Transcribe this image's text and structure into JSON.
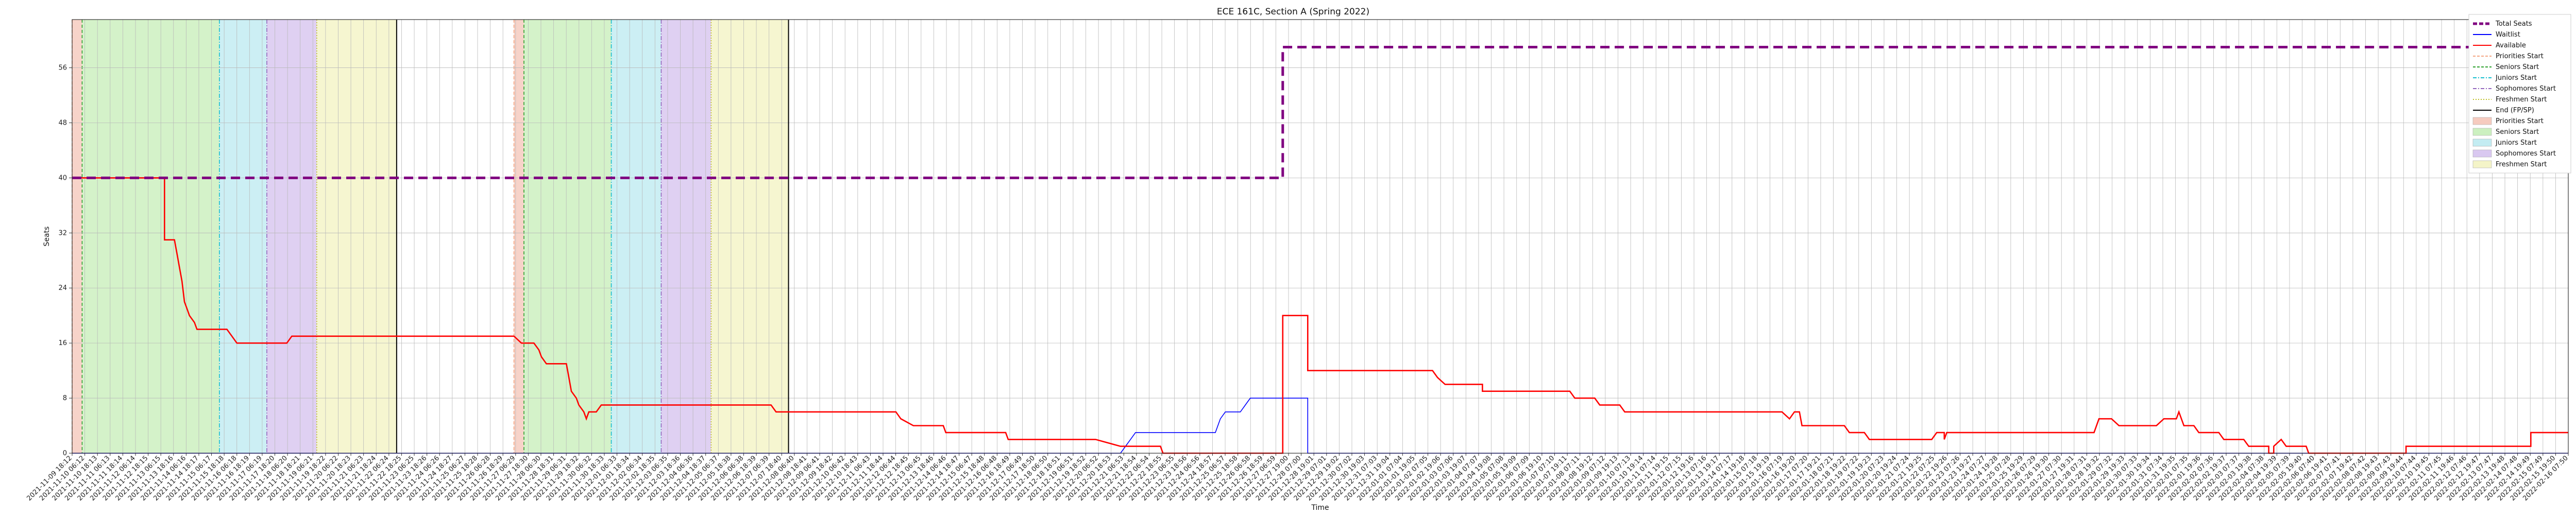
{
  "chart_data": {
    "type": "line",
    "title": "ECE 161C, Section A (Spring 2022)",
    "xlabel": "Time",
    "ylabel": "Seats",
    "yticks": [
      0,
      8,
      16,
      24,
      32,
      40,
      48,
      56
    ],
    "ylim": [
      0,
      63
    ],
    "xlim": [
      0,
      1000
    ],
    "x_unit_note": "",
    "grid": true,
    "legend_position": "outside-right",
    "legend": [
      {
        "label": "Total Seats",
        "kind": "line",
        "color": "#800080",
        "style": "dashed-thick"
      },
      {
        "label": "Waitlist",
        "kind": "line",
        "color": "#0000ff",
        "style": "solid"
      },
      {
        "label": "Available",
        "kind": "line",
        "color": "#ff0000",
        "style": "solid"
      },
      {
        "label": "Priorities Start",
        "kind": "line",
        "color": "#f4a582",
        "style": "dashed"
      },
      {
        "label": "Seniors Start",
        "kind": "line",
        "color": "#2ca02c",
        "style": "dashed"
      },
      {
        "label": "Juniors Start",
        "kind": "line",
        "color": "#17becf",
        "style": "dashdot"
      },
      {
        "label": "Sophomores Start",
        "kind": "line",
        "color": "#9467bd",
        "style": "dashdot"
      },
      {
        "label": "Freshmen Start",
        "kind": "line",
        "color": "#bcbd22",
        "style": "dotted"
      },
      {
        "label": "End (FP/SP)",
        "kind": "line",
        "color": "#000000",
        "style": "solid"
      },
      {
        "label": "Priorities Start",
        "kind": "patch",
        "color": "#f6cbbf"
      },
      {
        "label": "Seniors Start",
        "kind": "patch",
        "color": "#ccf0c0"
      },
      {
        "label": "Juniors Start",
        "kind": "patch",
        "color": "#c3ecf2"
      },
      {
        "label": "Sophomores Start",
        "kind": "patch",
        "color": "#d9c8f0"
      },
      {
        "label": "Freshmen Start",
        "kind": "patch",
        "color": "#f4f4c8"
      }
    ],
    "shaded_regions": [
      {
        "phase": "priority",
        "x0": 0,
        "x1": 4,
        "color": "#f6cbbf"
      },
      {
        "phase": "seniors",
        "x0": 4,
        "x1": 59,
        "color": "#ccf0c0"
      },
      {
        "phase": "juniors",
        "x0": 59,
        "x1": 78,
        "color": "#c3ecf2"
      },
      {
        "phase": "sophomores",
        "x0": 78,
        "x1": 98,
        "color": "#d9c8f0"
      },
      {
        "phase": "freshmen",
        "x0": 98,
        "x1": 130,
        "color": "#f4f4c8"
      },
      {
        "phase": "priority",
        "x0": 177,
        "x1": 181,
        "color": "#f6cbbf"
      },
      {
        "phase": "seniors",
        "x0": 181,
        "x1": 216,
        "color": "#ccf0c0"
      },
      {
        "phase": "juniors",
        "x0": 216,
        "x1": 236,
        "color": "#c3ecf2"
      },
      {
        "phase": "sophomores",
        "x0": 236,
        "x1": 256,
        "color": "#d9c8f0"
      },
      {
        "phase": "freshmen",
        "x0": 256,
        "x1": 287,
        "color": "#f4f4c8"
      }
    ],
    "end_lines": [
      130,
      287
    ],
    "series": [
      {
        "name": "Total Seats",
        "color": "#800080",
        "points": [
          [
            0,
            40
          ],
          [
            485,
            40
          ],
          [
            485,
            59
          ],
          [
            1000,
            59
          ]
        ]
      },
      {
        "name": "Waitlist",
        "color": "#0000ff",
        "points": [
          [
            0,
            0
          ],
          [
            420,
            0
          ],
          [
            422,
            1
          ],
          [
            424,
            2
          ],
          [
            426,
            3
          ],
          [
            458,
            3
          ],
          [
            460,
            5
          ],
          [
            462,
            6
          ],
          [
            468,
            6
          ],
          [
            470,
            7
          ],
          [
            472,
            8
          ],
          [
            495,
            8
          ],
          [
            495,
            0
          ],
          [
            1000,
            0
          ]
        ]
      },
      {
        "name": "Available",
        "color": "#ff0000",
        "points": [
          [
            0,
            40
          ],
          [
            37,
            40
          ],
          [
            37,
            31
          ],
          [
            41,
            31
          ],
          [
            42,
            29
          ],
          [
            43,
            27
          ],
          [
            44,
            25
          ],
          [
            45,
            22
          ],
          [
            46,
            21
          ],
          [
            47,
            20
          ],
          [
            49,
            19
          ],
          [
            50,
            18
          ],
          [
            62,
            18
          ],
          [
            64,
            17
          ],
          [
            66,
            16
          ],
          [
            86,
            16
          ],
          [
            88,
            17
          ],
          [
            177,
            17
          ],
          [
            180,
            16
          ],
          [
            185,
            16
          ],
          [
            187,
            15
          ],
          [
            188,
            14
          ],
          [
            190,
            13
          ],
          [
            198,
            13
          ],
          [
            199,
            11
          ],
          [
            200,
            9
          ],
          [
            202,
            8
          ],
          [
            203,
            7
          ],
          [
            205,
            6
          ],
          [
            206,
            5
          ],
          [
            207,
            6
          ],
          [
            210,
            6
          ],
          [
            212,
            7
          ],
          [
            280,
            7
          ],
          [
            282,
            6
          ],
          [
            330,
            6
          ],
          [
            332,
            5
          ],
          [
            337,
            4
          ],
          [
            349,
            4
          ],
          [
            350,
            3
          ],
          [
            363,
            3
          ],
          [
            374,
            3
          ],
          [
            375,
            2
          ],
          [
            410,
            2
          ],
          [
            420,
            1
          ],
          [
            436,
            1
          ],
          [
            437,
            0
          ],
          [
            485,
            0
          ],
          [
            485,
            20
          ],
          [
            495,
            20
          ],
          [
            495,
            12
          ],
          [
            545,
            12
          ],
          [
            547,
            11
          ],
          [
            550,
            10
          ],
          [
            565,
            10
          ],
          [
            565,
            9
          ],
          [
            600,
            9
          ],
          [
            602,
            8
          ],
          [
            610,
            8
          ],
          [
            612,
            7
          ],
          [
            620,
            7
          ],
          [
            622,
            6
          ],
          [
            685,
            6
          ],
          [
            688,
            5
          ],
          [
            690,
            6
          ],
          [
            692,
            6
          ],
          [
            693,
            4
          ],
          [
            710,
            4
          ],
          [
            712,
            3
          ],
          [
            718,
            3
          ],
          [
            720,
            2
          ],
          [
            745,
            2
          ],
          [
            747,
            3
          ],
          [
            750,
            3
          ],
          [
            750,
            2
          ],
          [
            751,
            3
          ],
          [
            810,
            3
          ],
          [
            812,
            5
          ],
          [
            817,
            5
          ],
          [
            820,
            4
          ],
          [
            835,
            4
          ],
          [
            838,
            5
          ],
          [
            843,
            5
          ],
          [
            844,
            6
          ],
          [
            846,
            4
          ],
          [
            850,
            4
          ],
          [
            852,
            3
          ],
          [
            860,
            3
          ],
          [
            862,
            2
          ],
          [
            870,
            2
          ],
          [
            872,
            1
          ],
          [
            880,
            1
          ],
          [
            880,
            0
          ],
          [
            882,
            0
          ],
          [
            882,
            1
          ],
          [
            885,
            2
          ],
          [
            887,
            1
          ],
          [
            895,
            1
          ],
          [
            896,
            0
          ],
          [
            935,
            0
          ],
          [
            935,
            1
          ],
          [
            950,
            1
          ],
          [
            950,
            1
          ],
          [
            960,
            1
          ],
          [
            970,
            1
          ],
          [
            985,
            1
          ],
          [
            985,
            3
          ],
          [
            1000,
            3
          ]
        ]
      }
    ]
  },
  "x_tick_labels": [
    "2021-11-09 18:12",
    "2021-11-10 06:12",
    "2021-11-10 18:13",
    "2021-11-11 06:13",
    "2021-11-11 18:14",
    "2021-11-12 06:14",
    "2021-11-12 18:15",
    "2021-11-13 06:15",
    "2021-11-13 18:16",
    "2021-11-14 06:16",
    "2021-11-14 18:17",
    "2021-11-15 06:17",
    "2021-11-15 18:18",
    "2021-11-16 06:18",
    "2021-11-16 18:19",
    "2021-11-17 06:19",
    "2021-11-17 18:20",
    "2021-11-18 06:20",
    "2021-11-18 18:21",
    "2021-11-19 06:21",
    "2021-11-19 18:22",
    "2021-11-20 06:22",
    "2021-11-20 18:23",
    "2021-11-21 06:23",
    "2021-11-21 18:24",
    "2021-11-22 06:24",
    "2021-11-22 18:25",
    "2021-11-23 06:25",
    "2021-11-23 18:26",
    "2021-11-24 06:26",
    "2021-11-24 18:27",
    "2021-11-25 06:27",
    "2021-11-25 18:28",
    "2021-11-26 06:28",
    "2021-11-26 18:29",
    "2021-11-27 06:29",
    "2021-11-27 18:30",
    "2021-11-28 06:30",
    "2021-11-28 18:31",
    "2021-11-29 06:31",
    "2021-11-29 18:32",
    "2021-11-30 06:32",
    "2021-11-30 18:33",
    "2021-12-01 06:33",
    "2021-12-01 18:34",
    "2021-12-02 06:34",
    "2021-12-02 18:35",
    "2021-12-03 06:35",
    "2021-12-03 18:36",
    "2021-12-04 06:36",
    "2021-12-04 18:37",
    "2021-12-05 06:37",
    "2021-12-05 18:38",
    "2021-12-06 06:38",
    "2021-12-06 18:39",
    "2021-12-07 06:39",
    "2021-12-07 18:40",
    "2021-12-08 06:40",
    "2021-12-08 18:41",
    "2021-12-09 06:41",
    "2021-12-09 18:42",
    "2021-12-10 06:42",
    "2021-12-10 18:43",
    "2021-12-11 06:43",
    "2021-12-11 18:44",
    "2021-12-12 06:44",
    "2021-12-12 18:45",
    "2021-12-13 06:45",
    "2021-12-13 18:46",
    "2021-12-14 06:46",
    "2021-12-14 18:47",
    "2021-12-15 06:47",
    "2021-12-15 18:48",
    "2021-12-16 06:48",
    "2021-12-16 18:49",
    "2021-12-17 06:49",
    "2021-12-17 18:50",
    "2021-12-18 06:50",
    "2021-12-18 18:51",
    "2021-12-19 06:51",
    "2021-12-19 18:52",
    "2021-12-20 06:52",
    "2021-12-20 18:53",
    "2021-12-21 06:53",
    "2021-12-21 18:54",
    "2021-12-22 06:54",
    "2021-12-22 18:55",
    "2021-12-23 06:55",
    "2021-12-23 18:56",
    "2021-12-24 06:56",
    "2021-12-24 18:57",
    "2021-12-25 06:57",
    "2021-12-25 18:58",
    "2021-12-26 06:58",
    "2021-12-26 18:59",
    "2021-12-27 06:59",
    "2021-12-27 19:00",
    "2021-12-28 07:00",
    "2021-12-28 19:01",
    "2021-12-29 07:01",
    "2021-12-29 19:02",
    "2021-12-30 07:02",
    "2021-12-30 19:03",
    "2021-12-31 07:03",
    "2021-12-31 19:04",
    "2022-01-01 07:04",
    "2022-01-01 19:05",
    "2022-01-02 07:05",
    "2022-01-02 19:06",
    "2022-01-03 07:06",
    "2022-01-03 19:07",
    "2022-01-04 07:07",
    "2022-01-04 19:08",
    "2022-01-05 07:08",
    "2022-01-05 19:09",
    "2022-01-06 07:09",
    "2022-01-06 19:10",
    "2022-01-07 07:10",
    "2022-01-07 19:11",
    "2022-01-08 07:11",
    "2022-01-08 19:12",
    "2022-01-09 07:12",
    "2022-01-09 19:13",
    "2022-01-10 07:13",
    "2022-01-10 19:14",
    "2022-01-11 07:14",
    "2022-01-11 19:15",
    "2022-01-12 07:15",
    "2022-01-12 19:16",
    "2022-01-13 07:16",
    "2022-01-13 19:17",
    "2022-01-14 07:17",
    "2022-01-14 19:18",
    "2022-01-15 07:18",
    "2022-01-15 19:19",
    "2022-01-16 07:19",
    "2022-01-16 19:20",
    "2022-01-17 07:20",
    "2022-01-17 19:21",
    "2022-01-18 07:21",
    "2022-01-18 19:22",
    "2022-01-19 07:22",
    "2022-01-19 19:23",
    "2022-01-20 07:23",
    "2022-01-20 19:24",
    "2022-01-21 07:24",
    "2022-01-21 19:25",
    "2022-01-22 07:25",
    "2022-01-22 19:26",
    "2022-01-23 07:26",
    "2022-01-23 19:27",
    "2022-01-24 07:27",
    "2022-01-24 19:28",
    "2022-01-25 07:28",
    "2022-01-25 19:29",
    "2022-01-26 07:29",
    "2022-01-26 19:30",
    "2022-01-27 07:30",
    "2022-01-27 19:31",
    "2022-01-28 07:31",
    "2022-01-28 19:32",
    "2022-01-29 07:32",
    "2022-01-29 19:33",
    "2022-01-30 07:33",
    "2022-01-30 19:34",
    "2022-01-31 07:34",
    "2022-01-31 19:35",
    "2022-02-01 07:35",
    "2022-02-01 19:36",
    "2022-02-02 07:36",
    "2022-02-02 19:37",
    "2022-02-03 07:37",
    "2022-02-03 19:38",
    "2022-02-04 07:38",
    "2022-02-04 19:39",
    "2022-02-05 07:39",
    "2022-02-05 19:40",
    "2022-02-06 07:40",
    "2022-02-06 19:41",
    "2022-02-07 07:41",
    "2022-02-07 19:42",
    "2022-02-08 07:42",
    "2022-02-08 19:43",
    "2022-02-09 07:43",
    "2022-02-09 19:44",
    "2022-02-10 07:44",
    "2022-02-10 19:45",
    "2022-02-11 07:45",
    "2022-02-11 19:46",
    "2022-02-12 07:46",
    "2022-02-12 19:47",
    "2022-02-13 07:47",
    "2022-02-13 19:48",
    "2022-02-14 07:48",
    "2022-02-14 19:49",
    "2022-02-15 07:49",
    "2022-02-15 19:50",
    "2022-02-16 07:50"
  ]
}
